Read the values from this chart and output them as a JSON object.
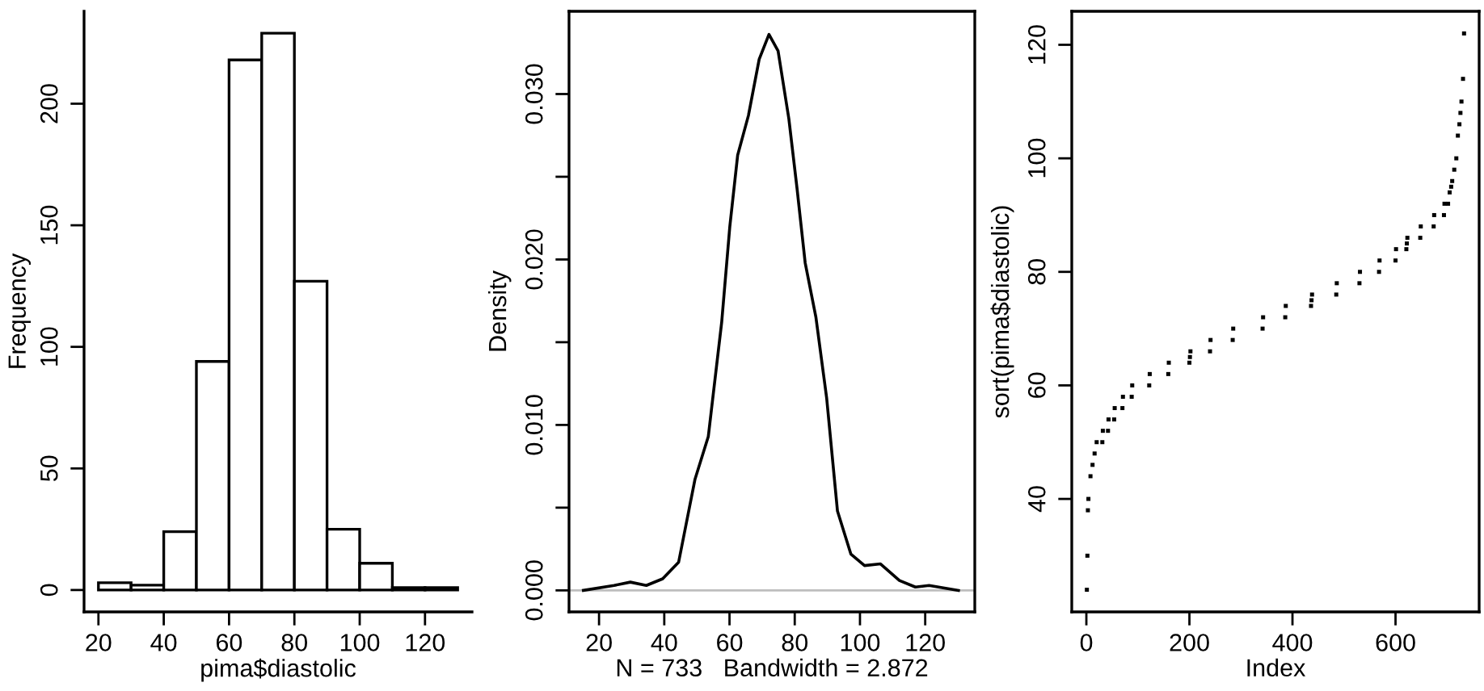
{
  "chart_data": [
    {
      "type": "histogram",
      "xlabel": "pima$diastolic",
      "ylabel": "Frequency",
      "color": "#ffffff",
      "bins": [
        20,
        30,
        40,
        50,
        60,
        70,
        80,
        90,
        100,
        110,
        120,
        130
      ],
      "values": [
        3,
        2,
        24,
        94,
        218,
        229,
        127,
        25,
        11,
        1,
        1
      ],
      "xlim": [
        15.6,
        134.4
      ],
      "ylim": [
        -9,
        238
      ],
      "xticks": [
        20,
        40,
        60,
        80,
        100,
        120
      ],
      "yticks": [
        0,
        50,
        100,
        150,
        200
      ]
    },
    {
      "type": "line",
      "xlabel": "N = 733   Bandwidth = 2.872",
      "ylabel": "Density",
      "color": "#000000",
      "x": [
        15.2,
        24.6,
        29.6,
        34.5,
        39.5,
        44.4,
        49.4,
        53.5,
        57.6,
        60.1,
        62.5,
        65.8,
        69.1,
        72.1,
        74.9,
        78.2,
        80.7,
        83.2,
        86.5,
        89.8,
        93.1,
        97.2,
        101.4,
        106.3,
        112.1,
        117.0,
        121.2,
        130.2
      ],
      "values": [
        0.0,
        0.0003,
        0.0005,
        0.0003,
        0.0007,
        0.0017,
        0.0067,
        0.0093,
        0.0162,
        0.022,
        0.0263,
        0.0287,
        0.0321,
        0.0336,
        0.0326,
        0.0285,
        0.0243,
        0.0198,
        0.0165,
        0.0116,
        0.0048,
        0.0022,
        0.0015,
        0.0016,
        0.0006,
        0.0002,
        0.0003,
        0.0
      ],
      "ref_lines": [
        {
          "axis": "y",
          "value": 0,
          "color": "#bebebe"
        }
      ],
      "xlim": [
        10.8,
        135.2
      ],
      "ylim": [
        -0.0013,
        0.035
      ],
      "xticks": [
        20,
        40,
        60,
        80,
        100,
        120
      ],
      "yticks": [
        {
          "value": 0,
          "label": "0.000"
        },
        {
          "value": 0.005,
          "label": null
        },
        {
          "value": 0.01,
          "label": "0.010"
        },
        {
          "value": 0.015,
          "label": null
        },
        {
          "value": 0.02,
          "label": "0.020"
        },
        {
          "value": 0.025,
          "label": null
        },
        {
          "value": 0.03,
          "label": "0.030"
        }
      ]
    },
    {
      "type": "scatter",
      "xlabel": "Index",
      "ylabel": "sort(pima$diastolic)",
      "color": "#000000",
      "marker": "square",
      "x": [
        1,
        2,
        3,
        4,
        8,
        12,
        16,
        20,
        31,
        32,
        42,
        43,
        54,
        55,
        70,
        71,
        88,
        89,
        122,
        123,
        159,
        160,
        200,
        201,
        202,
        240,
        241,
        284,
        285,
        342,
        343,
        386,
        387,
        436,
        437,
        438,
        485,
        486,
        530,
        531,
        568,
        569,
        600,
        601,
        621,
        622,
        623,
        648,
        649,
        674,
        675,
        694,
        695,
        702,
        705,
        708,
        710,
        714,
        718,
        721,
        724,
        726,
        728,
        731,
        733
      ],
      "values": [
        24,
        30,
        38,
        40,
        44,
        46,
        48,
        50,
        50,
        52,
        52,
        54,
        54,
        56,
        56,
        58,
        58,
        60,
        60,
        62,
        62,
        64,
        64,
        65,
        66,
        66,
        68,
        68,
        70,
        70,
        72,
        72,
        74,
        74,
        75,
        76,
        76,
        78,
        78,
        80,
        80,
        82,
        82,
        84,
        84,
        85,
        86,
        86,
        88,
        88,
        90,
        90,
        92,
        92,
        94,
        95,
        96,
        98,
        100,
        104,
        106,
        108,
        110,
        114,
        122
      ],
      "xlim": [
        -28.3,
        762.3
      ],
      "ylim": [
        20.1,
        125.9
      ],
      "xticks": [
        0,
        200,
        400,
        600
      ],
      "yticks": [
        40,
        60,
        80,
        100,
        120
      ]
    }
  ]
}
